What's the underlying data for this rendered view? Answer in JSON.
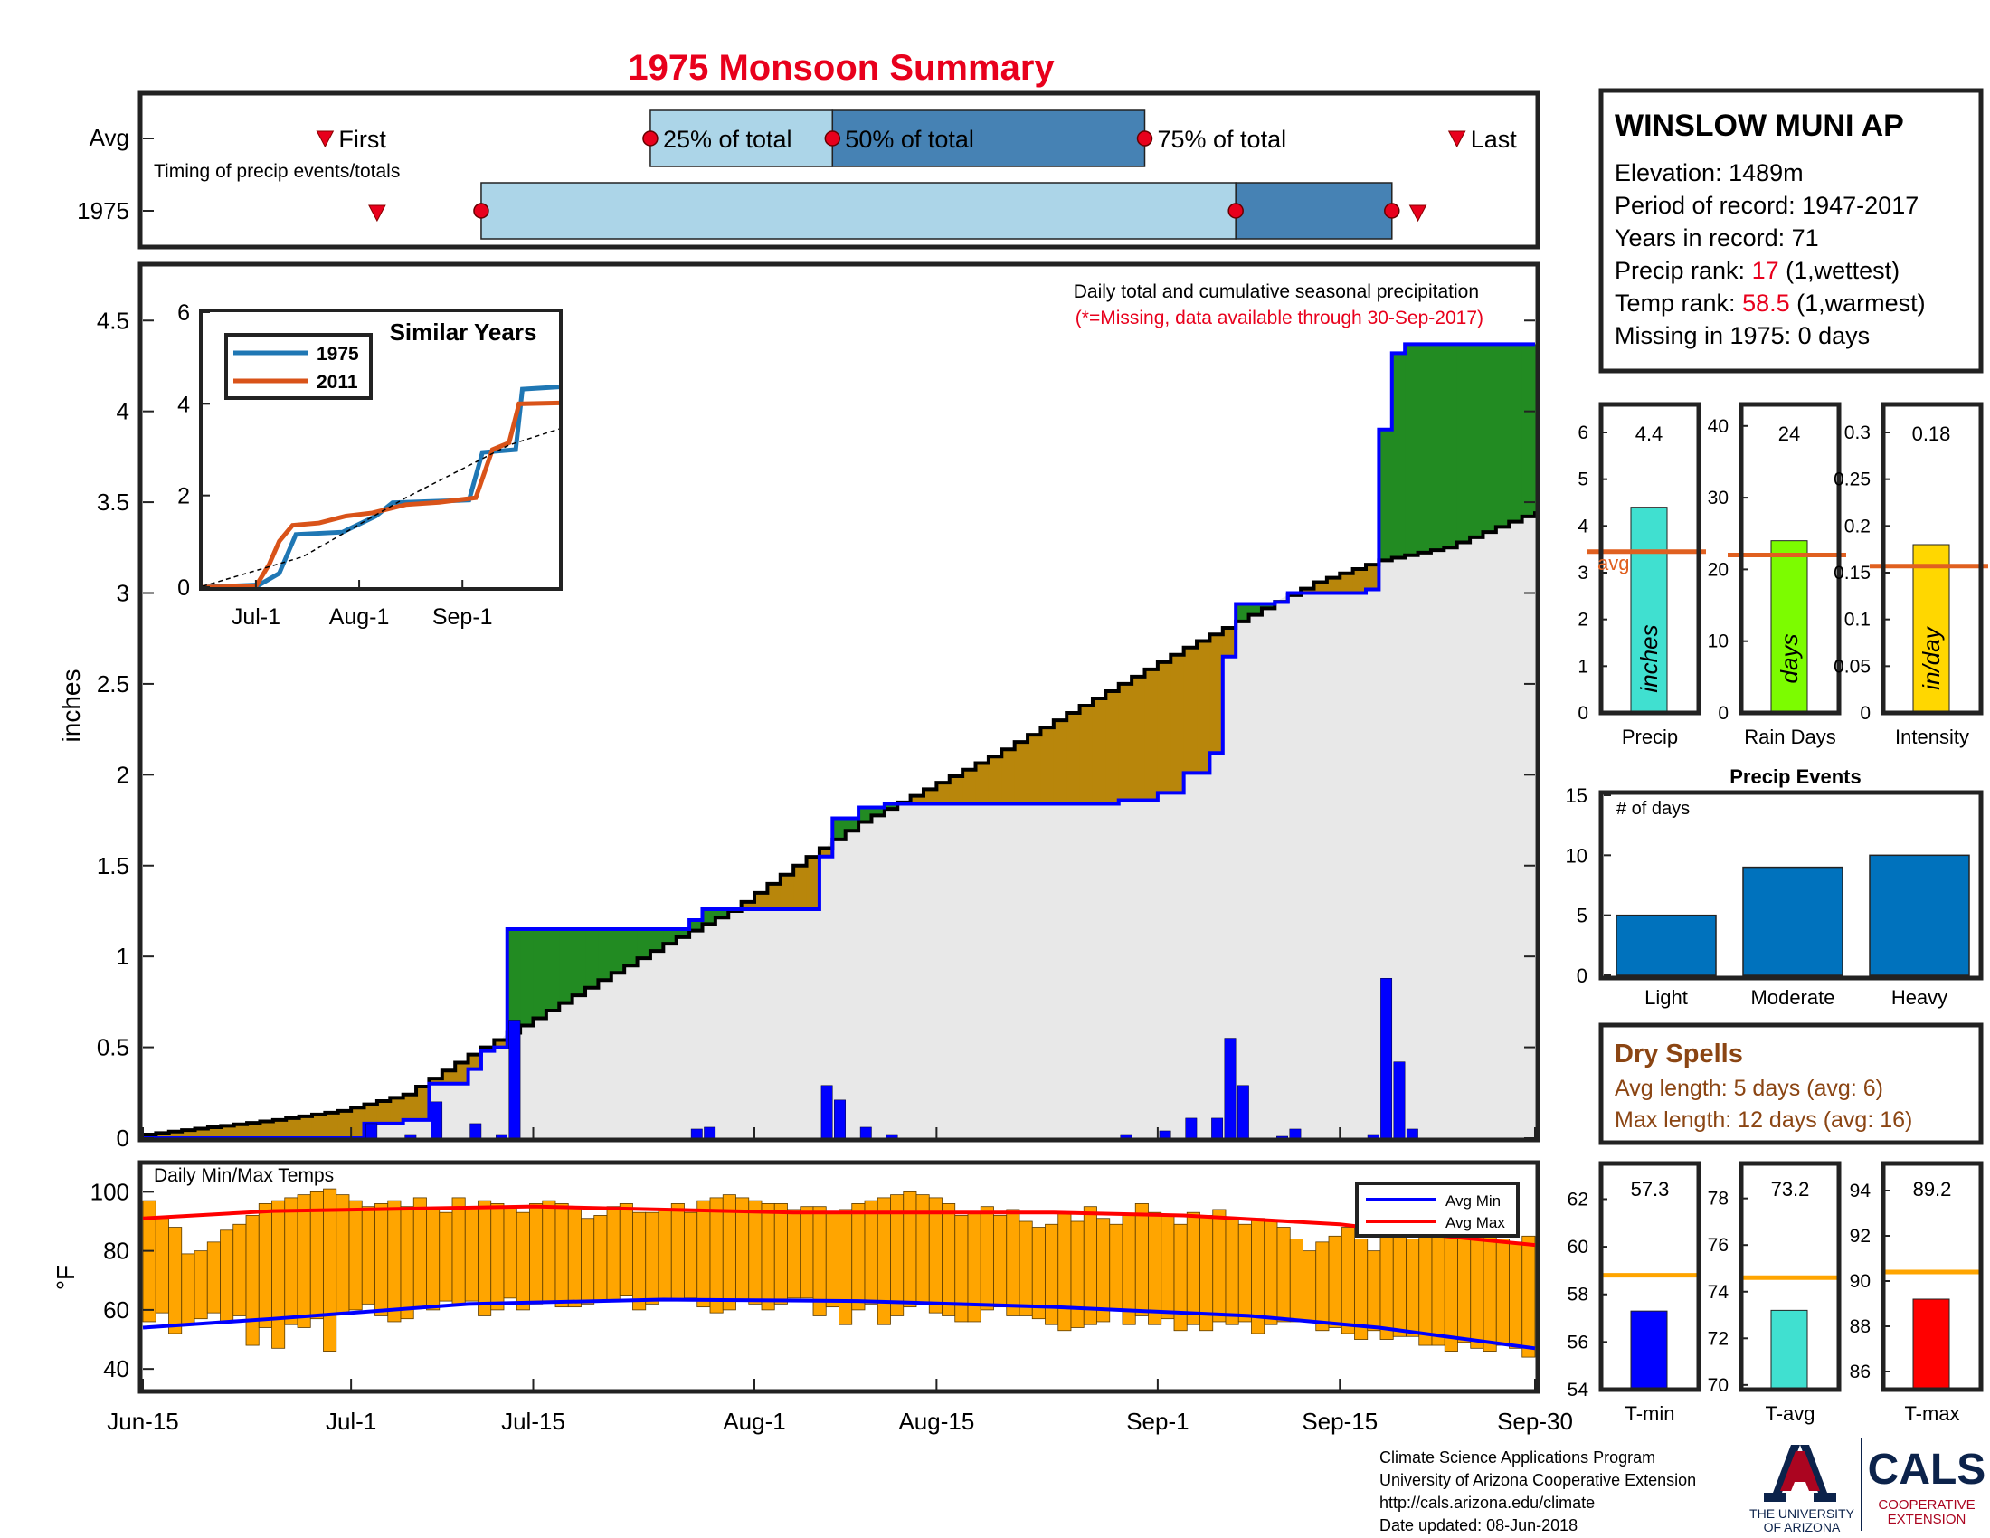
{
  "title": "1975 Monsoon Summary",
  "year_label": "1975",
  "avg_label": "Avg",
  "colors": {
    "title_red": "#e8001c",
    "light_blue": "#acd5e8",
    "dark_blue": "#4682b4",
    "green": "#228b22",
    "brown": "#b8860b",
    "cum_fill": "#e8e8e8",
    "bar_blue": "#0000ff",
    "temp_orange": "#ffa500",
    "avg_orange": "#e06020",
    "events_blue": "#0072bd",
    "dry_brown": "#8b4513",
    "rank_red": "#e8001c"
  },
  "timing": {
    "label": "Timing of precip events/totals",
    "first_label": "First",
    "last_label": "Last",
    "p25_label": "25% of total",
    "p50_label": "50% of total",
    "p75_label": "75% of total",
    "avg_first": "2023-06-29",
    "avg_p25": "2023-07-24",
    "avg_p50": "2023-08-07",
    "avg_p75": "2023-08-31",
    "avg_last": "2023-09-24",
    "year_first": "2023-07-03",
    "year_p25": "2023-07-11",
    "year_p75": "2023-09-07",
    "year_end": "2023-09-19",
    "year_last": "2023-09-21"
  },
  "station": {
    "name": "WINSLOW MUNI AP",
    "elevation": "Elevation: 1489m",
    "period": "Period of record: 1947-2017",
    "years": "Years in record: 71",
    "precip_rank_label": "Precip rank: ",
    "precip_rank_value": "17",
    "precip_rank_suffix": " (1,wettest)",
    "temp_rank_label": "Temp rank: ",
    "temp_rank_value": "58.5",
    "temp_rank_suffix": " (1,warmest)",
    "missing": "Missing in 1975: 0 days"
  },
  "main_chart": {
    "annotation1": "Daily total and cumulative seasonal precipitation",
    "annotation2": "(*=Missing, data available through 30-Sep-2017)",
    "ylabel": "inches",
    "ylim": [
      0,
      4.8
    ],
    "yticks": [
      "0",
      "0.5",
      "1",
      "1.5",
      "2",
      "2.5",
      "3",
      "3.5",
      "4",
      "4.5"
    ],
    "x_ticks": [
      {
        "label": "Jun-15",
        "date": "2023-06-15"
      },
      {
        "label": "Jul-1",
        "date": "2023-07-01"
      },
      {
        "label": "Jul-15",
        "date": "2023-07-15"
      },
      {
        "label": "Aug-1",
        "date": "2023-08-01"
      },
      {
        "label": "Aug-15",
        "date": "2023-08-15"
      },
      {
        "label": "Sep-1",
        "date": "2023-09-01"
      },
      {
        "label": "Sep-15",
        "date": "2023-09-15"
      },
      {
        "label": "Sep-30",
        "date": "2023-09-30"
      }
    ],
    "avg_cumulative": [
      [
        "2023-06-15",
        0.02
      ],
      [
        "2023-06-20",
        0.06
      ],
      [
        "2023-06-25",
        0.1
      ],
      [
        "2023-06-30",
        0.15
      ],
      [
        "2023-07-05",
        0.24
      ],
      [
        "2023-07-10",
        0.46
      ],
      [
        "2023-07-15",
        0.66
      ],
      [
        "2023-07-20",
        0.87
      ],
      [
        "2023-07-25",
        1.07
      ],
      [
        "2023-07-30",
        1.25
      ],
      [
        "2023-08-04",
        1.5
      ],
      [
        "2023-08-09",
        1.74
      ],
      [
        "2023-08-14",
        1.92
      ],
      [
        "2023-08-19",
        2.1
      ],
      [
        "2023-08-24",
        2.3
      ],
      [
        "2023-08-29",
        2.5
      ],
      [
        "2023-09-03",
        2.7
      ],
      [
        "2023-09-08",
        2.88
      ],
      [
        "2023-09-13",
        3.06
      ],
      [
        "2023-09-18",
        3.18
      ],
      [
        "2023-09-23",
        3.25
      ],
      [
        "2023-09-30",
        3.45
      ]
    ],
    "year_cumulative": [
      [
        "2023-06-15",
        0
      ],
      [
        "2023-07-02",
        0.0
      ],
      [
        "2023-07-02",
        0.08
      ],
      [
        "2023-07-05",
        0.08
      ],
      [
        "2023-07-05",
        0.1
      ],
      [
        "2023-07-07",
        0.1
      ],
      [
        "2023-07-07",
        0.3
      ],
      [
        "2023-07-10",
        0.3
      ],
      [
        "2023-07-10",
        0.38
      ],
      [
        "2023-07-11",
        0.38
      ],
      [
        "2023-07-11",
        0.48
      ],
      [
        "2023-07-12",
        0.48
      ],
      [
        "2023-07-12",
        0.5
      ],
      [
        "2023-07-13",
        0.5
      ],
      [
        "2023-07-13",
        1.15
      ],
      [
        "2023-07-27",
        1.15
      ],
      [
        "2023-07-27",
        1.2
      ],
      [
        "2023-07-28",
        1.2
      ],
      [
        "2023-07-28",
        1.26
      ],
      [
        "2023-08-06",
        1.26
      ],
      [
        "2023-08-06",
        1.55
      ],
      [
        "2023-08-07",
        1.55
      ],
      [
        "2023-08-07",
        1.76
      ],
      [
        "2023-08-09",
        1.76
      ],
      [
        "2023-08-09",
        1.82
      ],
      [
        "2023-08-11",
        1.82
      ],
      [
        "2023-08-11",
        1.84
      ],
      [
        "2023-08-29",
        1.84
      ],
      [
        "2023-08-29",
        1.86
      ],
      [
        "2023-09-01",
        1.86
      ],
      [
        "2023-09-01",
        1.9
      ],
      [
        "2023-09-03",
        1.9
      ],
      [
        "2023-09-03",
        2.01
      ],
      [
        "2023-09-05",
        2.01
      ],
      [
        "2023-09-05",
        2.12
      ],
      [
        "2023-09-06",
        2.12
      ],
      [
        "2023-09-06",
        2.65
      ],
      [
        "2023-09-07",
        2.65
      ],
      [
        "2023-09-07",
        2.94
      ],
      [
        "2023-09-10",
        2.94
      ],
      [
        "2023-09-10",
        2.95
      ],
      [
        "2023-09-11",
        2.95
      ],
      [
        "2023-09-11",
        3.0
      ],
      [
        "2023-09-17",
        3.0
      ],
      [
        "2023-09-17",
        3.02
      ],
      [
        "2023-09-18",
        3.02
      ],
      [
        "2023-09-18",
        3.9
      ],
      [
        "2023-09-19",
        3.9
      ],
      [
        "2023-09-19",
        4.32
      ],
      [
        "2023-09-20",
        4.32
      ],
      [
        "2023-09-20",
        4.37
      ],
      [
        "2023-09-30",
        4.37
      ]
    ],
    "daily_bars": [
      [
        "2023-07-02",
        0.08
      ],
      [
        "2023-07-05",
        0.02
      ],
      [
        "2023-07-07",
        0.2
      ],
      [
        "2023-07-10",
        0.08
      ],
      [
        "2023-07-12",
        0.02
      ],
      [
        "2023-07-13",
        0.65
      ],
      [
        "2023-07-27",
        0.05
      ],
      [
        "2023-07-28",
        0.06
      ],
      [
        "2023-08-06",
        0.29
      ],
      [
        "2023-08-07",
        0.21
      ],
      [
        "2023-08-09",
        0.06
      ],
      [
        "2023-08-11",
        0.02
      ],
      [
        "2023-08-29",
        0.02
      ],
      [
        "2023-09-01",
        0.04
      ],
      [
        "2023-09-03",
        0.11
      ],
      [
        "2023-09-05",
        0.11
      ],
      [
        "2023-09-06",
        0.55
      ],
      [
        "2023-09-07",
        0.29
      ],
      [
        "2023-09-10",
        0.01
      ],
      [
        "2023-09-11",
        0.05
      ],
      [
        "2023-09-17",
        0.02
      ],
      [
        "2023-09-18",
        0.88
      ],
      [
        "2023-09-19",
        0.42
      ],
      [
        "2023-09-20",
        0.05
      ]
    ]
  },
  "similar_years": {
    "title": "Similar Years",
    "ylim": [
      0,
      6
    ],
    "yticks": [
      "0",
      "2",
      "4",
      "6"
    ],
    "xticks": [
      {
        "label": "Jul-1",
        "date": "2023-07-01"
      },
      {
        "label": "Aug-1",
        "date": "2023-08-01"
      },
      {
        "label": "Sep-1",
        "date": "2023-09-01"
      }
    ],
    "series": [
      {
        "name": "1975",
        "color": "#1f77b4",
        "points": [
          [
            "2023-06-15",
            0
          ],
          [
            "2023-07-02",
            0.05
          ],
          [
            "2023-07-08",
            0.3
          ],
          [
            "2023-07-13",
            1.15
          ],
          [
            "2023-07-27",
            1.2
          ],
          [
            "2023-08-06",
            1.55
          ],
          [
            "2023-08-11",
            1.84
          ],
          [
            "2023-09-03",
            1.9
          ],
          [
            "2023-09-07",
            2.94
          ],
          [
            "2023-09-17",
            3.0
          ],
          [
            "2023-09-19",
            4.32
          ],
          [
            "2023-09-30",
            4.37
          ]
        ]
      },
      {
        "name": "2011",
        "color": "#d95319",
        "points": [
          [
            "2023-06-15",
            0
          ],
          [
            "2023-07-01",
            0.02
          ],
          [
            "2023-07-05",
            0.5
          ],
          [
            "2023-07-08",
            1.0
          ],
          [
            "2023-07-12",
            1.35
          ],
          [
            "2023-07-20",
            1.4
          ],
          [
            "2023-07-28",
            1.55
          ],
          [
            "2023-08-05",
            1.62
          ],
          [
            "2023-08-15",
            1.8
          ],
          [
            "2023-08-25",
            1.85
          ],
          [
            "2023-09-05",
            1.95
          ],
          [
            "2023-09-10",
            3.0
          ],
          [
            "2023-09-15",
            3.15
          ],
          [
            "2023-09-18",
            4.0
          ],
          [
            "2023-09-30",
            4.02
          ]
        ]
      },
      {
        "name": "avg",
        "color": "#000000",
        "points": [
          [
            "2023-06-15",
            0.02
          ],
          [
            "2023-07-15",
            0.66
          ],
          [
            "2023-08-15",
            1.95
          ],
          [
            "2023-09-15",
            3.1
          ],
          [
            "2023-09-30",
            3.45
          ]
        ]
      }
    ]
  },
  "summary_bars": [
    {
      "name": "Precip",
      "unit": "inches",
      "value": 4.4,
      "value_label": "4.4",
      "avg": 3.45,
      "avg_label": "avg",
      "ylim": [
        0,
        6.6
      ],
      "yticks": [
        "0",
        "1",
        "2",
        "3",
        "4",
        "5",
        "6"
      ],
      "color": "#40e0d0"
    },
    {
      "name": "Rain Days",
      "unit": "days",
      "value": 24,
      "value_label": "24",
      "avg": 22,
      "ylim": [
        0,
        43
      ],
      "yticks": [
        "0",
        "10",
        "20",
        "30",
        "40"
      ],
      "color": "#7cfc00"
    },
    {
      "name": "Intensity",
      "unit": "in/day",
      "value": 0.18,
      "value_label": "0.18",
      "avg": 0.157,
      "ylim": [
        0,
        0.33
      ],
      "yticks": [
        "0",
        "0.05",
        "0.1",
        "0.15",
        "0.2",
        "0.25",
        "0.3"
      ],
      "color": "#ffd700"
    }
  ],
  "precip_events": {
    "title": "Precip Events",
    "ylabel_inner": "# of days",
    "ylim": [
      0,
      15
    ],
    "yticks": [
      "0",
      "5",
      "10",
      "15"
    ],
    "categories": [
      "Light",
      "Moderate",
      "Heavy"
    ],
    "values": [
      5,
      9,
      10
    ]
  },
  "dry_spells": {
    "title": "Dry Spells",
    "avg_length": "Avg length: 5 days (avg: 6)",
    "max_length": "Max length: 12 days (avg: 16)"
  },
  "temps": {
    "label": "Daily Min/Max Temps",
    "ylabel": "°F",
    "ylim": [
      33,
      109
    ],
    "yticks": [
      "40",
      "60",
      "80",
      "100"
    ],
    "legend_min": "Avg Min",
    "legend_max": "Avg Max",
    "avg_max": [
      [
        0,
        91
      ],
      [
        10,
        93.5
      ],
      [
        30,
        95
      ],
      [
        50,
        93
      ],
      [
        70,
        93
      ],
      [
        80,
        92
      ],
      [
        92,
        89
      ],
      [
        100,
        85
      ],
      [
        107,
        82
      ]
    ],
    "avg_min": [
      [
        0,
        54
      ],
      [
        10,
        57
      ],
      [
        25,
        62
      ],
      [
        40,
        63.5
      ],
      [
        55,
        63
      ],
      [
        70,
        61
      ],
      [
        85,
        58
      ],
      [
        95,
        54
      ],
      [
        107,
        47
      ]
    ],
    "daily_max": [
      97,
      91,
      88,
      79,
      80,
      83,
      87,
      89,
      92,
      96,
      97,
      98,
      99,
      100,
      101,
      99,
      97,
      95,
      96,
      97,
      95,
      98,
      94,
      93,
      98,
      95,
      97,
      96,
      95,
      93,
      96,
      97,
      96,
      95,
      91,
      92,
      95,
      96,
      93,
      93,
      94,
      96,
      93,
      97,
      98,
      99,
      98,
      97,
      96,
      96,
      94,
      95,
      95,
      93,
      94,
      96,
      97,
      98,
      99,
      100,
      99,
      98,
      96,
      92,
      93,
      95,
      92,
      94,
      90,
      88,
      89,
      93,
      90,
      95,
      91,
      89,
      92,
      96,
      93,
      92,
      89,
      93,
      92,
      94,
      91,
      89,
      91,
      90,
      88,
      84,
      80,
      83,
      85,
      88,
      84,
      80,
      89,
      87,
      84,
      88,
      85,
      86,
      84,
      87,
      85,
      84,
      83,
      85
    ],
    "daily_min": [
      56,
      59,
      52,
      55,
      57,
      59,
      56,
      58,
      48,
      54,
      47,
      55,
      54,
      57,
      46,
      59,
      60,
      62,
      58,
      56,
      57,
      61,
      60,
      63,
      62,
      63,
      58,
      60,
      64,
      60,
      62,
      63,
      61,
      61,
      62,
      63,
      63,
      65,
      60,
      62,
      63,
      63,
      64,
      61,
      59,
      60,
      63,
      62,
      60,
      62,
      64,
      64,
      58,
      61,
      55,
      60,
      62,
      55,
      58,
      61,
      62,
      59,
      58,
      56,
      56,
      60,
      61,
      58,
      58,
      57,
      55,
      53,
      54,
      55,
      56,
      60,
      55,
      58,
      55,
      57,
      53,
      55,
      53,
      56,
      55,
      56,
      52,
      55,
      56,
      56,
      56,
      53,
      54,
      52,
      50,
      53,
      50,
      51,
      51,
      48,
      48,
      46,
      49,
      47,
      46,
      48,
      47,
      44
    ]
  },
  "temp_bars": [
    {
      "name": "T-min",
      "value": 57.3,
      "value_label": "57.3",
      "avg": 58.8,
      "ylim": [
        54,
        63.5
      ],
      "yticks": [
        "54",
        "56",
        "58",
        "60",
        "62"
      ],
      "color": "#0000ff"
    },
    {
      "name": "T-avg",
      "value": 73.2,
      "value_label": "73.2",
      "avg": 74.6,
      "ylim": [
        69.8,
        79.5
      ],
      "yticks": [
        "70",
        "72",
        "74",
        "76",
        "78"
      ],
      "color": "#40e0d0"
    },
    {
      "name": "T-max",
      "value": 89.2,
      "value_label": "89.2",
      "avg": 90.4,
      "ylim": [
        85.2,
        95.2
      ],
      "yticks": [
        "86",
        "88",
        "90",
        "92",
        "94"
      ],
      "color": "#ff0000"
    }
  ],
  "footer": {
    "line1": "Climate Science Applications Program",
    "line2": "University of Arizona Cooperative Extension",
    "line3": "http://cals.arizona.edu/climate",
    "line4": " Date updated: 08-Jun-2018",
    "logo_ua1": "THE UNIVERSITY",
    "logo_ua2": "OF ARIZONA",
    "logo_cals": "CALS",
    "logo_coop1": "COOPERATIVE",
    "logo_coop2": "EXTENSION"
  }
}
